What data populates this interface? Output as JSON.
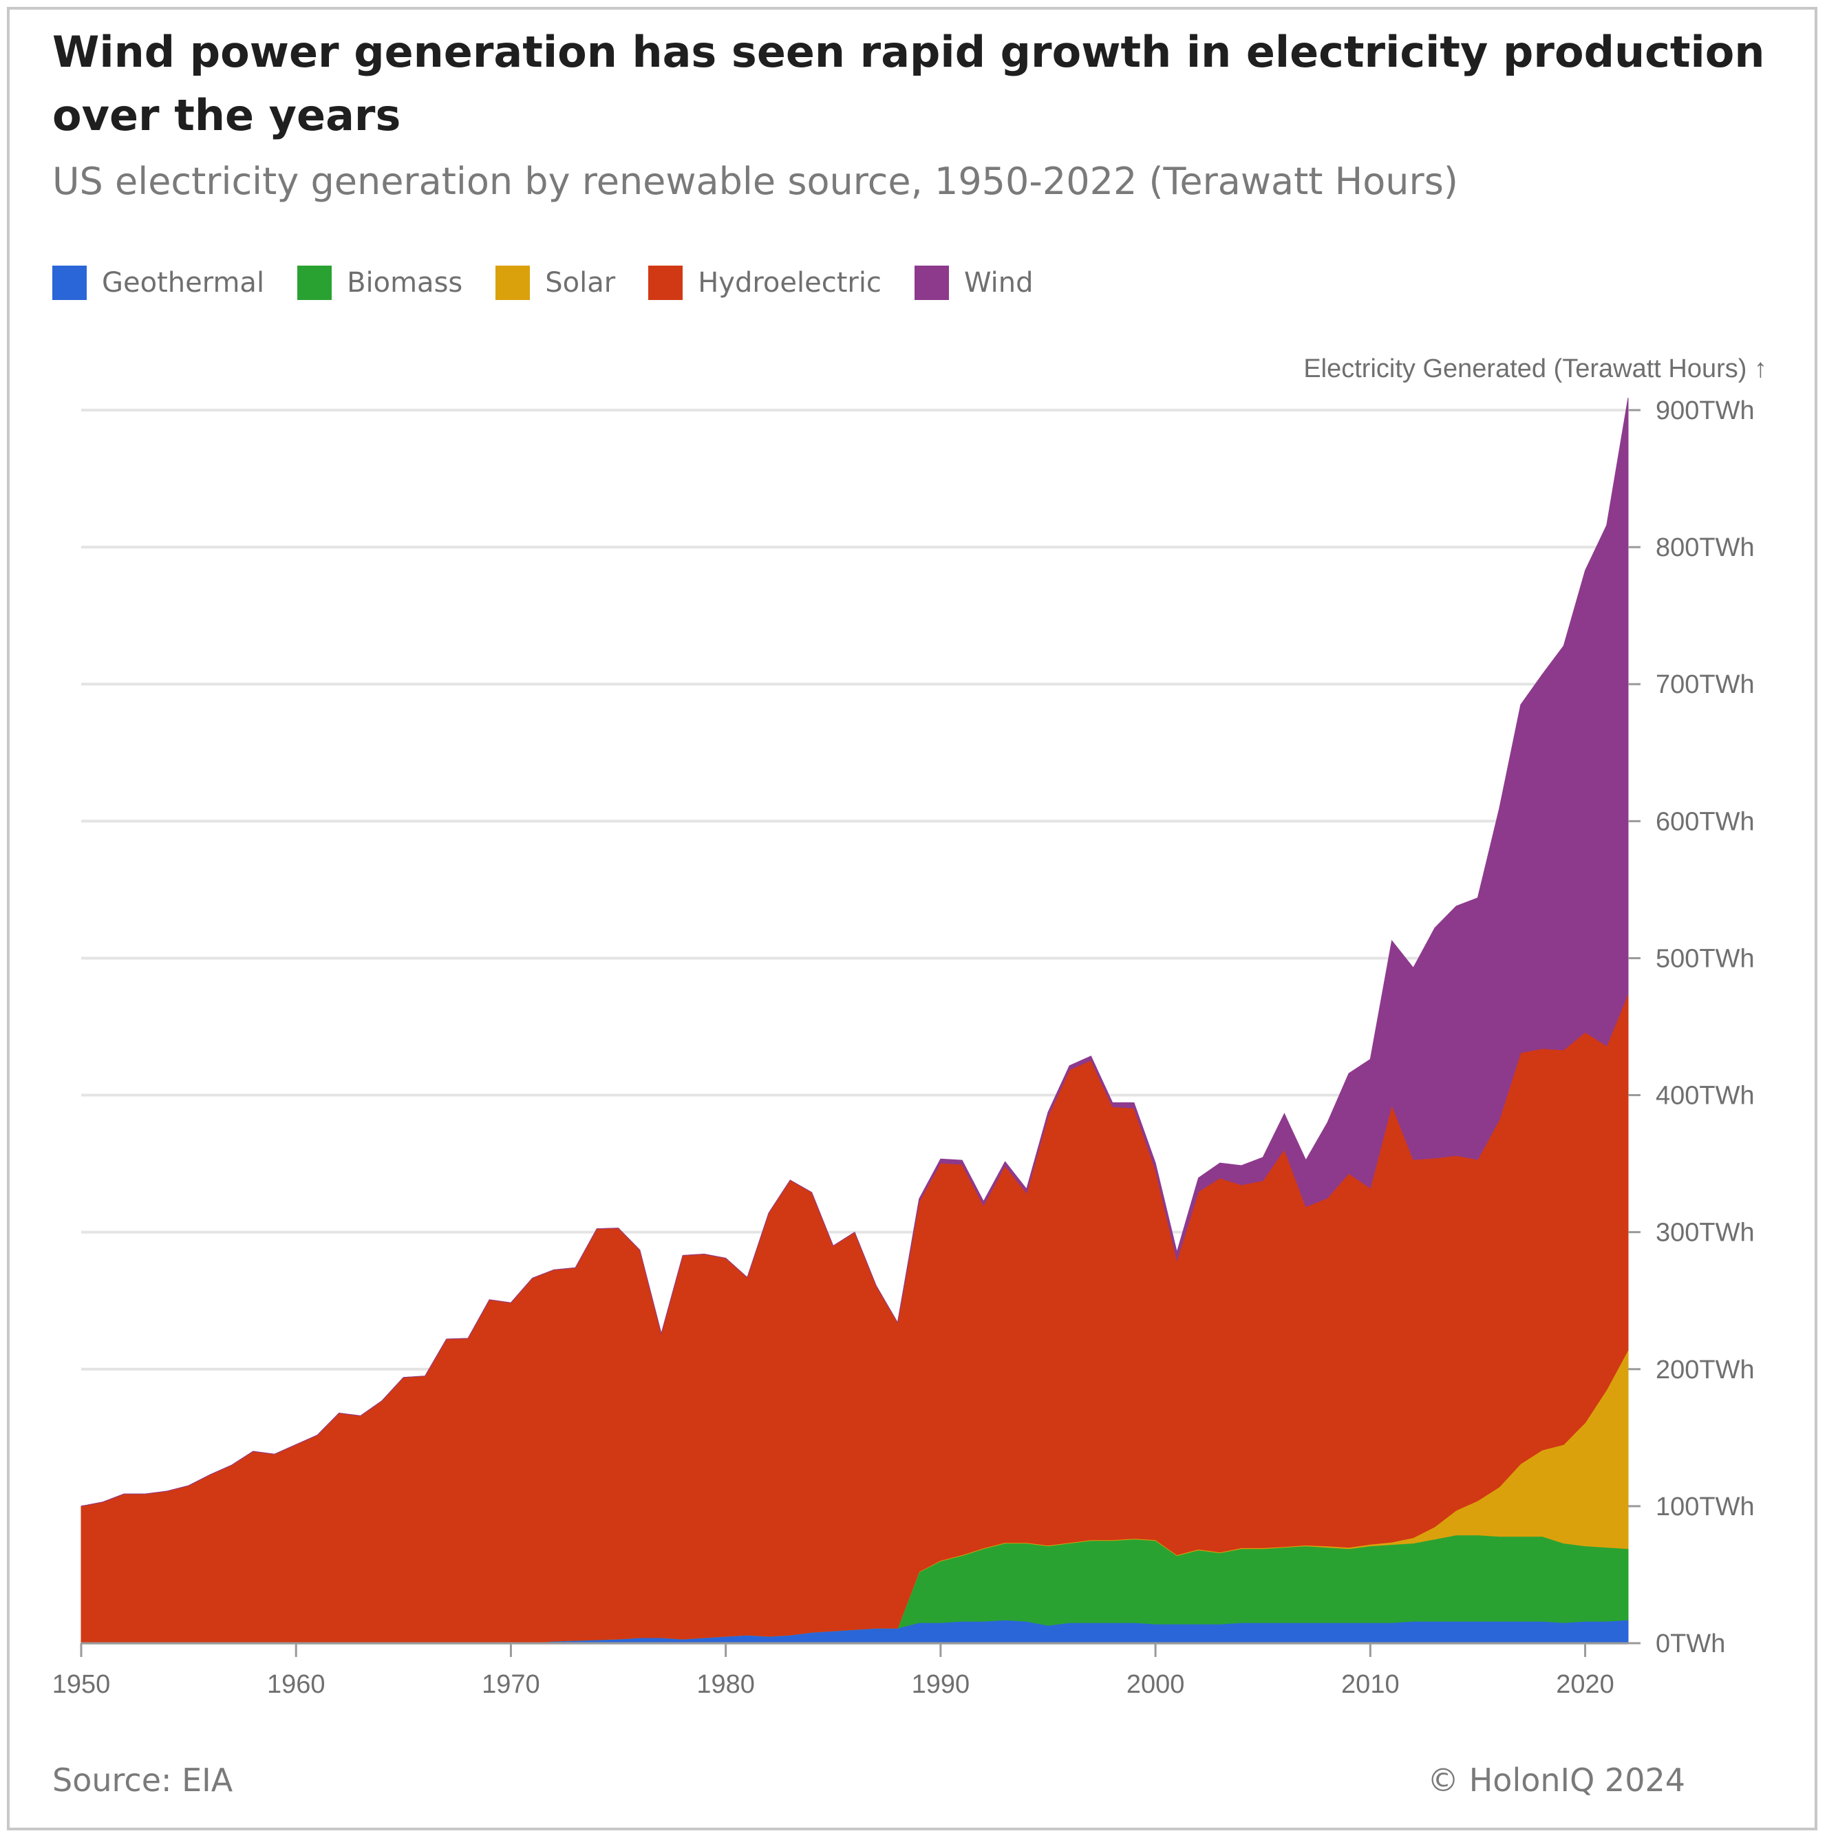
{
  "title": "Wind power generation has seen rapid growth in electricity production over the years",
  "subtitle": "US electricity generation by renewable source, 1950-2022 (Terawatt Hours)",
  "footer": {
    "source": "Source: EIA",
    "credit": "© HolonIQ 2024"
  },
  "chart_data": {
    "type": "area",
    "stacked": true,
    "title": "Wind power generation has seen rapid growth in electricity production over the years",
    "subtitle": "US electricity generation by renewable source, 1950-2022 (Terawatt Hours)",
    "xlabel": "",
    "ylabel": "Electricity Generated (Terawatt Hours) ↑",
    "xlim": [
      1950,
      2022
    ],
    "ylim": [
      0,
      900
    ],
    "x_ticks": [
      1950,
      1960,
      1970,
      1980,
      1990,
      2000,
      2010,
      2020
    ],
    "y_ticks": [
      {
        "value": 0,
        "label": "0TWh"
      },
      {
        "value": 100,
        "label": "100TWh"
      },
      {
        "value": 200,
        "label": "200TWh"
      },
      {
        "value": 300,
        "label": "300TWh"
      },
      {
        "value": 400,
        "label": "400TWh"
      },
      {
        "value": 500,
        "label": "500TWh"
      },
      {
        "value": 600,
        "label": "600TWh"
      },
      {
        "value": 700,
        "label": "700TWh"
      },
      {
        "value": 800,
        "label": "800TWh"
      },
      {
        "value": 900,
        "label": "900TWh"
      }
    ],
    "grid": true,
    "legend_position": "top-left",
    "x": [
      1950,
      1951,
      1952,
      1953,
      1954,
      1955,
      1956,
      1957,
      1958,
      1959,
      1960,
      1961,
      1962,
      1963,
      1964,
      1965,
      1966,
      1967,
      1968,
      1969,
      1970,
      1971,
      1972,
      1973,
      1974,
      1975,
      1976,
      1977,
      1978,
      1979,
      1980,
      1981,
      1982,
      1983,
      1984,
      1985,
      1986,
      1987,
      1988,
      1989,
      1990,
      1991,
      1992,
      1993,
      1994,
      1995,
      1996,
      1997,
      1998,
      1999,
      2000,
      2001,
      2002,
      2003,
      2004,
      2005,
      2006,
      2007,
      2008,
      2009,
      2010,
      2011,
      2012,
      2013,
      2014,
      2015,
      2016,
      2017,
      2018,
      2019,
      2020,
      2021,
      2022
    ],
    "series": [
      {
        "name": "Geothermal",
        "color": "#2b66d8",
        "values": [
          0,
          0,
          0,
          0,
          0,
          0,
          0,
          0,
          0,
          0,
          0,
          0,
          0,
          0,
          0,
          0,
          0,
          0,
          0.5,
          0.7,
          0.5,
          0.5,
          1.5,
          2,
          2.5,
          3,
          4,
          4,
          3,
          4,
          5,
          6,
          5,
          6,
          8,
          9,
          10,
          11,
          11,
          15,
          15,
          16,
          16,
          17,
          16,
          13,
          15,
          15,
          15,
          15,
          14,
          14,
          14,
          14,
          15,
          15,
          15,
          15,
          15,
          15,
          15,
          15,
          16,
          16,
          16,
          16,
          16,
          16,
          16,
          15,
          16,
          16,
          17
        ]
      },
      {
        "name": "Biomass",
        "color": "#2aa232",
        "values": [
          0,
          0,
          0,
          0,
          0,
          0,
          0,
          0,
          0,
          0,
          0,
          0,
          0,
          0,
          0,
          0,
          0,
          0,
          0,
          0,
          0,
          0,
          0,
          0,
          0,
          0,
          0,
          0,
          0,
          0,
          0,
          0,
          0,
          0,
          0,
          0,
          0,
          0,
          0,
          37,
          45,
          48,
          53,
          56,
          57,
          58,
          58,
          60,
          60,
          61,
          61,
          50,
          54,
          52,
          54,
          54,
          55,
          56,
          55,
          54,
          56,
          57,
          57,
          60,
          63,
          63,
          62,
          62,
          62,
          58,
          55,
          54,
          52
        ]
      },
      {
        "name": "Solar",
        "color": "#dba10c",
        "values": [
          0,
          0,
          0,
          0,
          0,
          0,
          0,
          0,
          0,
          0,
          0,
          0,
          0,
          0,
          0,
          0,
          0,
          0,
          0,
          0,
          0,
          0,
          0,
          0,
          0,
          0,
          0,
          0,
          0,
          0,
          0,
          0,
          0,
          0,
          0,
          0,
          0,
          0,
          0,
          0.3,
          0.4,
          0.5,
          0.5,
          0.5,
          0.5,
          0.5,
          0.5,
          0.5,
          0.5,
          0.5,
          0.5,
          0.5,
          0.6,
          0.5,
          0.6,
          0.6,
          0.5,
          0.6,
          0.9,
          0.9,
          1.2,
          1.8,
          4,
          9,
          18,
          25,
          36,
          53,
          63,
          72,
          90,
          115,
          145
        ]
      },
      {
        "name": "Hydroelectric",
        "color": "#d13914",
        "values": [
          100,
          103,
          109,
          109,
          111,
          115,
          123,
          130,
          140,
          138,
          145,
          152,
          168,
          166,
          177,
          194,
          195,
          222,
          222,
          250,
          248,
          266,
          271,
          272,
          300,
          300,
          283,
          222,
          280,
          280,
          276,
          261,
          309,
          332,
          321,
          281,
          290,
          250,
          223,
          270,
          290,
          285,
          250,
          275,
          255,
          313,
          345,
          350,
          316,
          314,
          270,
          215,
          261,
          273,
          265,
          268,
          290,
          247,
          254,
          273,
          260,
          319,
          276,
          269,
          259,
          249,
          268,
          300,
          293,
          288,
          285,
          251,
          260
        ]
      },
      {
        "name": "Wind",
        "color": "#8d3a8d",
        "values": [
          0,
          0,
          0,
          0,
          0,
          0,
          0,
          0,
          0,
          0,
          0,
          0,
          0,
          0,
          0,
          0,
          0,
          0,
          0,
          0,
          0,
          0,
          0,
          0,
          0,
          0,
          0,
          0,
          0,
          0,
          0,
          0,
          0,
          0,
          0,
          0,
          0,
          0,
          0,
          2,
          3,
          3,
          3,
          3,
          3,
          3,
          3,
          3,
          3,
          4,
          5,
          6,
          10,
          11,
          14,
          17,
          26,
          34,
          55,
          73,
          94,
          120,
          140,
          168,
          182,
          191,
          227,
          254,
          273,
          295,
          337,
          380,
          435
        ]
      }
    ]
  }
}
